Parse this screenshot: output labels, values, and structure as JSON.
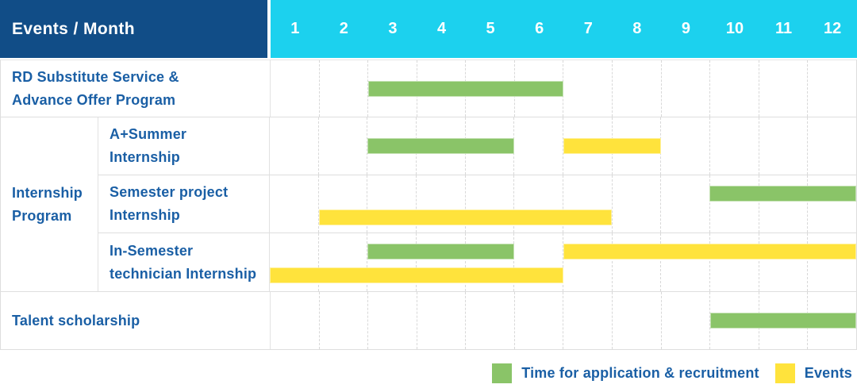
{
  "header": {
    "title": "Events / Month"
  },
  "colors": {
    "header_dark": "#114d87",
    "header_cyan": "#1cd1ee",
    "green": "#8ac468",
    "yellow": "#ffe33c",
    "text_blue": "#1a5fa5"
  },
  "chart_data": {
    "type": "gantt",
    "title": "Events / Month",
    "months": [
      "1",
      "2",
      "3",
      "4",
      "5",
      "6",
      "7",
      "8",
      "9",
      "10",
      "11",
      "12"
    ],
    "group_label": "Internship\nProgram",
    "rows": [
      {
        "id": "rd",
        "label": "RD Substitute Service &\nAdvance Offer Program",
        "group": null,
        "bars": [
          {
            "color": "green",
            "start": 3,
            "end": 6,
            "lane": "center"
          }
        ]
      },
      {
        "id": "a_summer",
        "label": "A+Summer\nInternship",
        "group": "Internship Program",
        "bars": [
          {
            "color": "green",
            "start": 3,
            "end": 5,
            "lane": "center"
          },
          {
            "color": "yellow",
            "start": 7,
            "end": 8,
            "lane": "center"
          }
        ]
      },
      {
        "id": "semester_project",
        "label": "Semester project\nInternship",
        "group": "Internship Program",
        "bars": [
          {
            "color": "green",
            "start": 10,
            "end": 12,
            "lane": "top"
          },
          {
            "color": "yellow",
            "start": 2,
            "end": 7,
            "lane": "bottom"
          }
        ]
      },
      {
        "id": "in_semester",
        "label": "In-Semester\ntechnician Internship",
        "group": "Internship Program",
        "bars": [
          {
            "color": "green",
            "start": 3,
            "end": 5,
            "lane": "top"
          },
          {
            "color": "yellow",
            "start": 7,
            "end": 12,
            "lane": "top"
          },
          {
            "color": "yellow",
            "start": 1,
            "end": 6,
            "lane": "bottom"
          }
        ]
      },
      {
        "id": "talent",
        "label": "Talent scholarship",
        "group": null,
        "bars": [
          {
            "color": "green",
            "start": 10,
            "end": 12,
            "lane": "center"
          }
        ]
      }
    ],
    "legend": [
      {
        "label": "Time for application & recruitment",
        "color": "green"
      },
      {
        "label": "Events",
        "color": "yellow"
      }
    ]
  }
}
